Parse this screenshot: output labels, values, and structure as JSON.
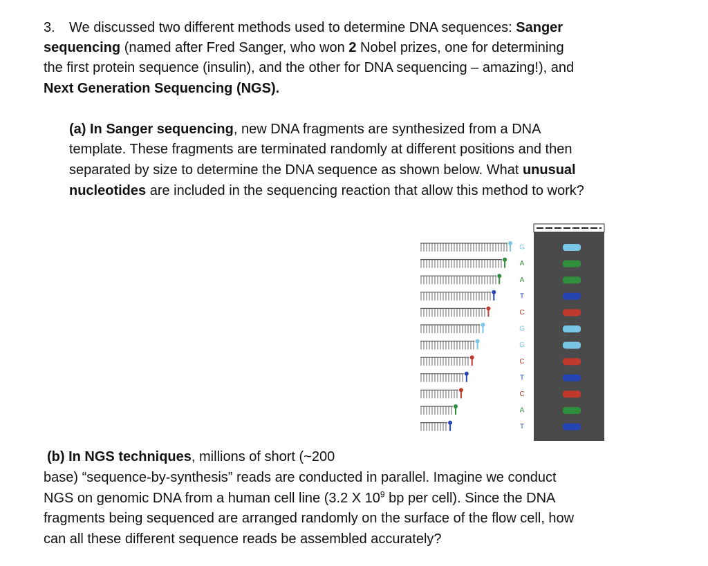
{
  "question": {
    "number": "3.",
    "lines": [
      [
        {
          "text": "We discussed two different methods used to determine DNA sequences:  "
        },
        {
          "text": "Sanger",
          "bold": true
        }
      ],
      [
        {
          "text": "sequencing",
          "bold": true
        },
        {
          "text": " (named after Fred Sanger, who won "
        },
        {
          "text": "2",
          "bold": true
        },
        {
          "text": " Nobel prizes, one for determining"
        }
      ],
      [
        {
          "text": "the first protein sequence (insulin), and the other for DNA sequencing – amazing!), and"
        }
      ],
      [
        {
          "text": "Next Generation Sequencing (NGS).",
          "bold": true
        }
      ]
    ]
  },
  "part_a": {
    "lines": [
      [
        {
          "text": "(a)  In Sanger sequencing",
          "bold": true
        },
        {
          "text": ", new DNA fragments are synthesized from a DNA"
        }
      ],
      [
        {
          "text": "template.  These fragments are terminated randomly at different positions and then"
        }
      ],
      [
        {
          "text": "separated by size to determine the DNA sequence as shown below.  What "
        },
        {
          "text": "unusual",
          "bold": true
        }
      ],
      [
        {
          "text": "nucleotides",
          "bold": true
        },
        {
          "text": " are included in the sequencing reaction that allow this method to work?"
        }
      ]
    ]
  },
  "figure": {
    "letters": [
      "G",
      "A",
      "A",
      "T",
      "C",
      "G",
      "G",
      "C",
      "T",
      "C",
      "A",
      "T"
    ]
  },
  "part_b": {
    "lines": [
      [
        {
          "text": "(b)  In NGS techniques",
          "bold": true
        },
        {
          "text": ", millions of short (~200"
        }
      ],
      [
        {
          "text": "base) “sequence-by-synthesis” reads are conducted in parallel.  Imagine we conduct"
        }
      ],
      [
        {
          "text": "NGS on genomic DNA from a human cell line (3.2 X 10"
        },
        {
          "text": "9",
          "sup": true
        },
        {
          "text": " bp per cell).  Since the DNA"
        }
      ],
      [
        {
          "text": "fragments being sequenced are arranged randomly on the surface of the flow cell, how"
        }
      ],
      [
        {
          "text": "can all these different sequence reads be assembled accurately?"
        }
      ]
    ]
  }
}
